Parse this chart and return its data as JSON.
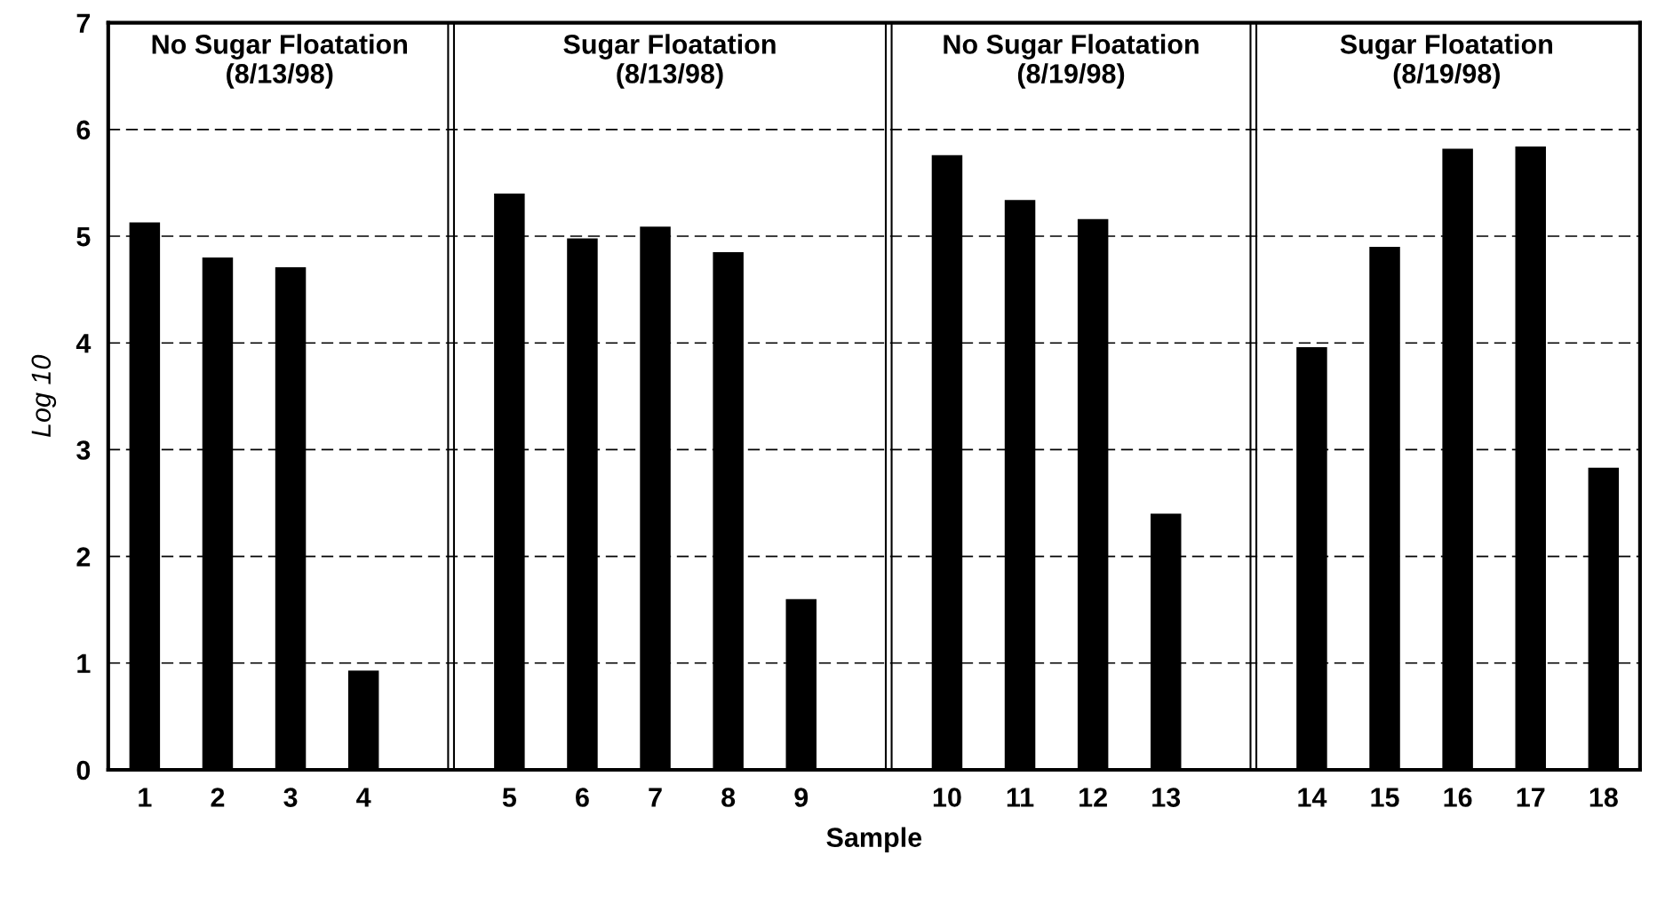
{
  "chart_data": {
    "type": "bar",
    "xlabel": "Sample",
    "ylabel": "Log 10",
    "categories": [
      "1",
      "2",
      "3",
      "4",
      null,
      "5",
      "6",
      "7",
      "8",
      "9",
      null,
      "10",
      "11",
      "12",
      "13",
      null,
      "14",
      "15",
      "16",
      "17",
      "18"
    ],
    "values": [
      5.13,
      4.8,
      4.71,
      0.93,
      null,
      5.4,
      4.98,
      5.09,
      4.85,
      1.6,
      null,
      5.76,
      5.34,
      5.16,
      2.4,
      null,
      3.96,
      4.9,
      5.82,
      5.84,
      2.83
    ],
    "color": "#000000",
    "ylim": [
      0,
      7
    ],
    "yticks": [
      0,
      1,
      2,
      3,
      4,
      5,
      6,
      7
    ],
    "grid": "y",
    "annotations": [
      "No Sugar Floatation\n(8/13/98)",
      "Sugar Floatation\n(8/13/98)",
      "No Sugar Floatation\n(8/19/98)",
      "Sugar Floatation\n(8/19/98)"
    ]
  }
}
